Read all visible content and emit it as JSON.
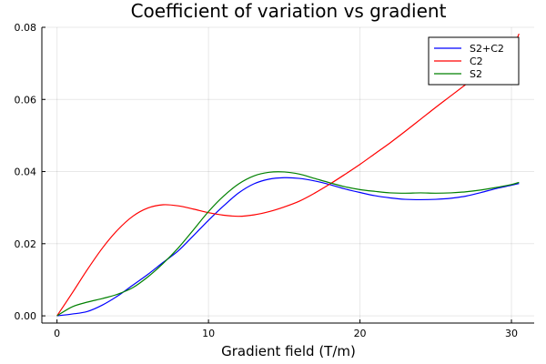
{
  "chart_data": {
    "type": "line",
    "title": "Coefficient of variation vs gradient",
    "xlabel": "Gradient field (T/m)",
    "ylabel": "",
    "xlim": [
      -1,
      31.5
    ],
    "ylim": [
      -0.002,
      0.08
    ],
    "x_ticks": [
      0,
      10,
      20,
      30
    ],
    "x_tick_labels": [
      "0",
      "10",
      "20",
      "30"
    ],
    "y_ticks": [
      0.0,
      0.02,
      0.04,
      0.06,
      0.08
    ],
    "y_tick_labels": [
      "0.00",
      "0.02",
      "0.04",
      "0.06",
      "0.08"
    ],
    "grid": true,
    "legend_position": "top-right",
    "series": [
      {
        "name": "S2+C2",
        "color": "#0000ff",
        "x": [
          0,
          1,
          2,
          3,
          4,
          5,
          6,
          7,
          8,
          9,
          10,
          11,
          12,
          13,
          14,
          15,
          16,
          17,
          18,
          19,
          20,
          21,
          22,
          23,
          24,
          25,
          26,
          27,
          28,
          29,
          30,
          30.5
        ],
        "y": [
          0.0,
          0.0005,
          0.0012,
          0.003,
          0.0055,
          0.0085,
          0.0115,
          0.0148,
          0.018,
          0.0222,
          0.0265,
          0.0305,
          0.0341,
          0.0366,
          0.0379,
          0.0383,
          0.0381,
          0.0374,
          0.0364,
          0.0352,
          0.0342,
          0.0333,
          0.0327,
          0.0323,
          0.0322,
          0.0323,
          0.0326,
          0.0332,
          0.0342,
          0.0353,
          0.0362,
          0.0367
        ]
      },
      {
        "name": "C2",
        "color": "#ff0000",
        "x": [
          0,
          1,
          2,
          3,
          4,
          5,
          6,
          7,
          8,
          9,
          10,
          11,
          12,
          13,
          14,
          15,
          16,
          17,
          18,
          19,
          20,
          21,
          22,
          23,
          24,
          25,
          26,
          27,
          28,
          29,
          30,
          30.5
        ],
        "y": [
          0.0,
          0.0063,
          0.0128,
          0.0188,
          0.0238,
          0.0276,
          0.0299,
          0.0308,
          0.0305,
          0.0296,
          0.0286,
          0.0279,
          0.0276,
          0.028,
          0.0289,
          0.0302,
          0.0318,
          0.034,
          0.0365,
          0.0392,
          0.042,
          0.045,
          0.048,
          0.0512,
          0.0545,
          0.0578,
          0.061,
          0.0642,
          0.0674,
          0.0706,
          0.0738,
          0.0782
        ]
      },
      {
        "name": "S2",
        "color": "#008000",
        "x": [
          0,
          1,
          2,
          3,
          4,
          5,
          6,
          7,
          8,
          9,
          10,
          11,
          12,
          13,
          14,
          15,
          16,
          17,
          18,
          19,
          20,
          21,
          22,
          23,
          24,
          25,
          26,
          27,
          28,
          29,
          30,
          30.5
        ],
        "y": [
          0.0,
          0.0025,
          0.0038,
          0.0048,
          0.006,
          0.0078,
          0.0108,
          0.0145,
          0.0188,
          0.0238,
          0.0289,
          0.0332,
          0.0366,
          0.0388,
          0.0398,
          0.0399,
          0.0393,
          0.0381,
          0.0369,
          0.0358,
          0.035,
          0.0345,
          0.0341,
          0.034,
          0.0341,
          0.034,
          0.0341,
          0.0344,
          0.0349,
          0.0356,
          0.0364,
          0.037
        ]
      }
    ]
  }
}
